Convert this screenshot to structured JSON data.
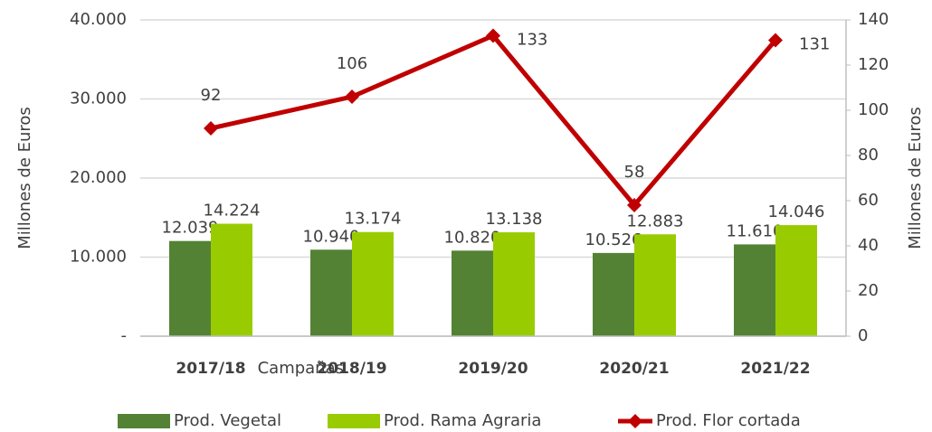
{
  "chart_data": {
    "type": "bar_line",
    "categories": [
      "2017/18",
      "2018/19",
      "2019/20",
      "2020/21",
      "2021/22"
    ],
    "x_axis_label": "Campañas",
    "y_axis_label": "Millones de Euros",
    "y2_axis_label": "Millones de Euros",
    "series": [
      {
        "name": "Prod. Vegetal",
        "type": "bar",
        "color": "#548235",
        "values": [
          12039,
          10940,
          10820,
          10526,
          11610
        ],
        "value_labels": [
          "12.039",
          "10.940",
          "10.820",
          "10.526",
          "11.610"
        ]
      },
      {
        "name": "Prod. Rama Agraria",
        "type": "bar",
        "color": "#99cc00",
        "values": [
          14224,
          13174,
          13138,
          12883,
          14046
        ],
        "value_labels": [
          "14.224",
          "13.174",
          "13.138",
          "12.883",
          "14.046"
        ]
      },
      {
        "name": "Prod. Flor cortada",
        "type": "line",
        "axis": "y2",
        "color": "#c00000",
        "values": [
          92,
          106,
          133,
          58,
          131
        ]
      }
    ],
    "ylim": [
      0,
      40000
    ],
    "yticks": [
      {
        "value": 0,
        "label": "-"
      },
      {
        "value": 10000,
        "label": "10.000"
      },
      {
        "value": 20000,
        "label": "20.000"
      },
      {
        "value": 30000,
        "label": "30.000"
      },
      {
        "value": 40000,
        "label": "40.000"
      }
    ],
    "y2lim": [
      0,
      140
    ],
    "y2ticks": [
      0,
      20,
      40,
      60,
      80,
      100,
      120,
      140
    ],
    "grid": true,
    "legend": "bottom"
  }
}
